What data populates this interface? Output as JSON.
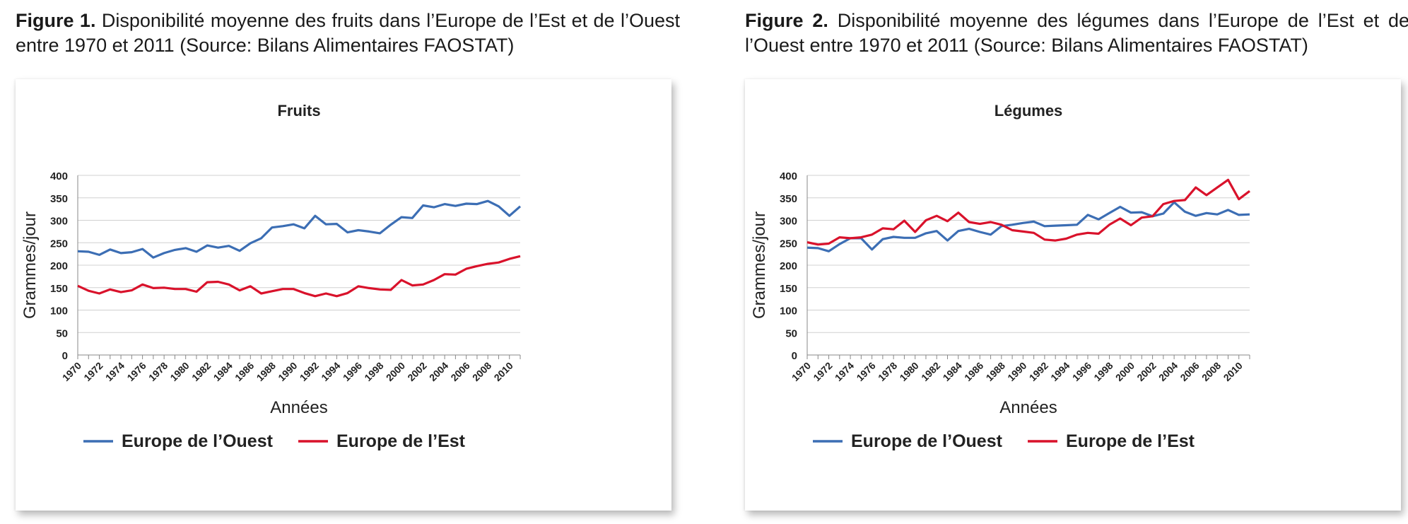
{
  "figures": [
    {
      "label": "Figure 1.",
      "caption": " Disponibilité moyenne des fruits dans l’Europe de l’Est et de l’Ouest entre 1970 et 2011 (Source: Bilans Alimentaires FAOSTAT)"
    },
    {
      "label": "Figure 2.",
      "caption": " Disponibilité moyenne des légumes dans l’Europe de l’Est et de l’Ouest entre 1970 et 2011 (Source: Bilans Alimentaires FAOSTAT)"
    }
  ],
  "chart_data": [
    {
      "type": "line",
      "title": "Fruits",
      "xlabel": "Années",
      "ylabel": "Grammes/jour",
      "ylim": [
        0,
        400
      ],
      "yticks": [
        0,
        50,
        100,
        150,
        200,
        250,
        300,
        350,
        400
      ],
      "xtick_labels": [
        "1970",
        "1972",
        "1974",
        "1976",
        "1978",
        "1980",
        "1982",
        "1984",
        "1986",
        "1988",
        "1990",
        "1992",
        "1994",
        "1996",
        "1998",
        "2000",
        "2002",
        "2004",
        "2006",
        "2008",
        "2010"
      ],
      "x": [
        1970,
        1971,
        1972,
        1973,
        1974,
        1975,
        1976,
        1977,
        1978,
        1979,
        1980,
        1981,
        1982,
        1983,
        1984,
        1985,
        1986,
        1987,
        1988,
        1989,
        1990,
        1991,
        1992,
        1993,
        1994,
        1995,
        1996,
        1997,
        1998,
        1999,
        2000,
        2001,
        2002,
        2003,
        2004,
        2005,
        2006,
        2007,
        2008,
        2009,
        2010,
        2011
      ],
      "grid": true,
      "legend": "bottom",
      "series": [
        {
          "name": "Europe de l’Ouest",
          "color": "#3c6eb4",
          "values": [
            231,
            230,
            223,
            235,
            227,
            229,
            236,
            217,
            227,
            234,
            238,
            230,
            244,
            239,
            243,
            232,
            249,
            260,
            284,
            287,
            291,
            282,
            310,
            291,
            292,
            273,
            278,
            275,
            271,
            290,
            307,
            305,
            333,
            329,
            336,
            332,
            337,
            336,
            343,
            331,
            310,
            331
          ]
        },
        {
          "name": "Europe de l’Est",
          "color": "#d9122b",
          "values": [
            154,
            143,
            137,
            146,
            140,
            144,
            157,
            149,
            150,
            147,
            147,
            141,
            162,
            163,
            157,
            144,
            153,
            137,
            142,
            147,
            147,
            138,
            131,
            137,
            131,
            138,
            153,
            149,
            146,
            145,
            167,
            155,
            157,
            167,
            180,
            179,
            192,
            198,
            203,
            206,
            214,
            220
          ]
        }
      ]
    },
    {
      "type": "line",
      "title": "Légumes",
      "xlabel": "Années",
      "ylabel": "Grammes/jour",
      "ylim": [
        0,
        400
      ],
      "yticks": [
        0,
        50,
        100,
        150,
        200,
        250,
        300,
        350,
        400
      ],
      "xtick_labels": [
        "1970",
        "1972",
        "1974",
        "1976",
        "1978",
        "1980",
        "1982",
        "1984",
        "1986",
        "1988",
        "1990",
        "1992",
        "1994",
        "1996",
        "1998",
        "2000",
        "2002",
        "2004",
        "2006",
        "2008",
        "2010"
      ],
      "x": [
        1970,
        1971,
        1972,
        1973,
        1974,
        1975,
        1976,
        1977,
        1978,
        1979,
        1980,
        1981,
        1982,
        1983,
        1984,
        1985,
        1986,
        1987,
        1988,
        1989,
        1990,
        1991,
        1992,
        1993,
        1994,
        1995,
        1996,
        1997,
        1998,
        1999,
        2000,
        2001,
        2002,
        2003,
        2004,
        2005,
        2006,
        2007,
        2008,
        2009,
        2010,
        2011
      ],
      "grid": true,
      "legend": "bottom",
      "series": [
        {
          "name": "Europe de l’Ouest",
          "color": "#3c6eb4",
          "values": [
            239,
            238,
            231,
            247,
            260,
            260,
            235,
            258,
            263,
            261,
            261,
            271,
            276,
            255,
            276,
            281,
            274,
            268,
            287,
            290,
            294,
            297,
            287,
            288,
            289,
            290,
            312,
            302,
            316,
            330,
            317,
            318,
            309,
            315,
            340,
            319,
            310,
            316,
            313,
            323,
            312,
            313
          ]
        },
        {
          "name": "Europe de l’Est",
          "color": "#d9122b",
          "values": [
            251,
            246,
            248,
            262,
            260,
            262,
            268,
            282,
            280,
            299,
            274,
            300,
            310,
            298,
            317,
            296,
            292,
            296,
            290,
            278,
            275,
            272,
            257,
            255,
            259,
            268,
            272,
            270,
            290,
            304,
            289,
            306,
            309,
            336,
            343,
            345,
            373,
            356,
            373,
            390,
            347,
            365
          ]
        }
      ]
    }
  ]
}
